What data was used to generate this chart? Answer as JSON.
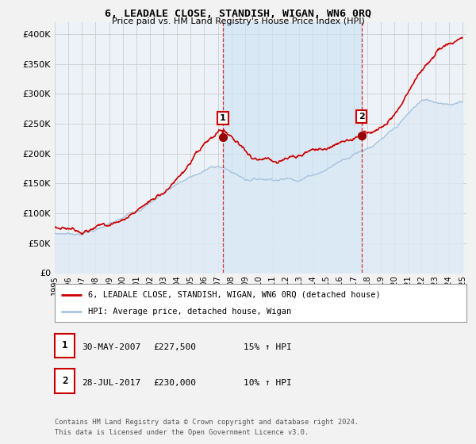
{
  "title": "6, LEADALE CLOSE, STANDISH, WIGAN, WN6 0RQ",
  "subtitle": "Price paid vs. HM Land Registry's House Price Index (HPI)",
  "legend_line1": "6, LEADALE CLOSE, STANDISH, WIGAN, WN6 0RQ (detached house)",
  "legend_line2": "HPI: Average price, detached house, Wigan",
  "annotation1_label": "1",
  "annotation1_date": "30-MAY-2007",
  "annotation1_price": "£227,500",
  "annotation1_hpi": "15% ↑ HPI",
  "annotation2_label": "2",
  "annotation2_date": "28-JUL-2017",
  "annotation2_price": "£230,000",
  "annotation2_hpi": "10% ↑ HPI",
  "footnote1": "Contains HM Land Registry data © Crown copyright and database right 2024.",
  "footnote2": "This data is licensed under the Open Government Licence v3.0.",
  "hpi_color": "#a8c4e0",
  "hpi_fill_color": "#ddeaf5",
  "price_color": "#cc0000",
  "annotation_color": "#cc0000",
  "background_color": "#f8f8f8",
  "chart_bg_color": "#f0f4f8",
  "grid_color": "#cccccc",
  "shade_color": "#d0e4f4",
  "ylim": [
    0,
    420000
  ],
  "yticks": [
    0,
    50000,
    100000,
    150000,
    200000,
    250000,
    300000,
    350000,
    400000
  ],
  "x_start_year": 1995,
  "x_end_year": 2025,
  "sale1_year": 2007.38,
  "sale1_price": 227500,
  "sale2_year": 2017.57,
  "sale2_price": 230000
}
